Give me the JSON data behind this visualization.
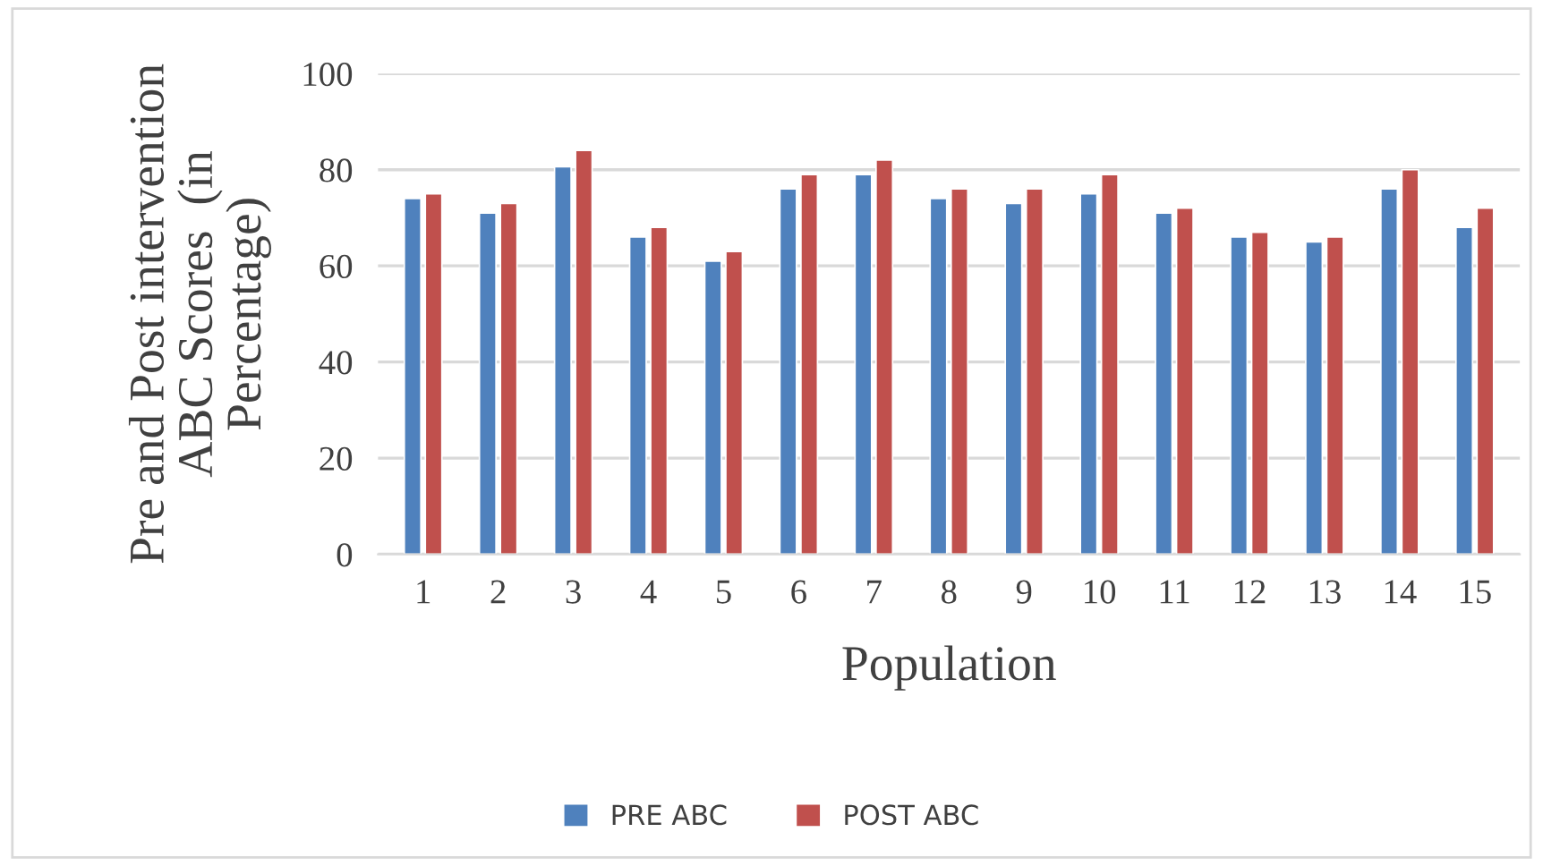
{
  "chart_data": {
    "type": "bar",
    "xlabel": "Population",
    "ylabel": "Pre and Post intervention\nABC Scores  (in\nPercentage)",
    "categories": [
      "1",
      "2",
      "3",
      "4",
      "5",
      "6",
      "7",
      "8",
      "9",
      "10",
      "11",
      "12",
      "13",
      "14",
      "15"
    ],
    "series": [
      {
        "name": "PRE ABC",
        "color": "#4f81bd",
        "values": [
          74,
          71,
          80.6,
          66,
          61,
          76,
          79,
          74,
          73,
          75,
          71,
          66,
          65,
          76,
          68
        ]
      },
      {
        "name": "POST ABC",
        "color": "#c0504d",
        "values": [
          75,
          73,
          84,
          68,
          63,
          79,
          82,
          76,
          76,
          79,
          72,
          67,
          66,
          80,
          72
        ]
      }
    ],
    "ylim": [
      0,
      100
    ],
    "yticks": [
      0,
      20,
      40,
      60,
      80,
      100
    ],
    "grid": "y",
    "legend": "bottom"
  }
}
